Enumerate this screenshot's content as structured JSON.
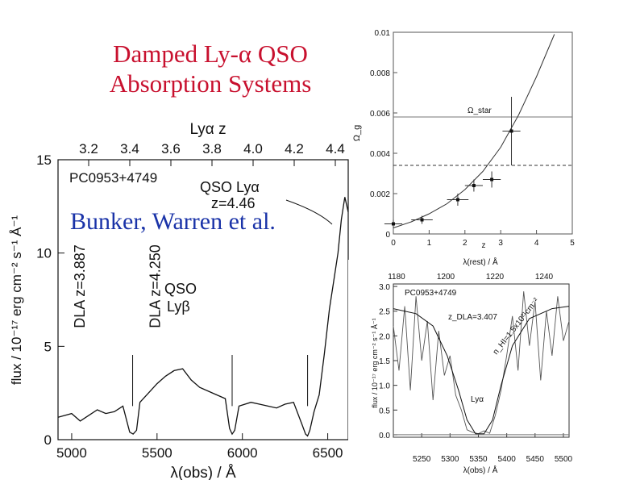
{
  "slide": {
    "title_line1": "Damped Ly-α QSO",
    "title_line2": "Absorption Systems",
    "credit": "Bunker, Warren et al."
  },
  "chart_data": [
    {
      "type": "line",
      "object": "PC0953+4749",
      "xlabel": "λ(obs) / Å",
      "ylabel": "flux / 10⁻¹⁷ erg cm⁻² s⁻¹ Å⁻¹",
      "top_axis_label": "Lyα z",
      "xlim": [
        4920,
        6620
      ],
      "ylim": [
        0,
        15
      ],
      "x_ticks": [
        5000,
        5500,
        6000,
        6500
      ],
      "y_ticks": [
        0,
        5,
        10,
        15
      ],
      "top_ticks": [
        "3.2",
        "3.4",
        "3.6",
        "3.8",
        "4.0",
        "4.2",
        "4.4"
      ],
      "annotations": [
        {
          "text": "QSO Lyα",
          "sub": "z=4.46",
          "x": 6580,
          "y": 9.6
        },
        {
          "text": "QSO",
          "sub": "Lyβ",
          "x": 5600,
          "y": 6
        },
        {
          "text": "DLA z=3.407",
          "x": 5357,
          "y": 1.8,
          "vertical": true
        },
        {
          "text": "DLA z=3.887",
          "x": 5940,
          "y": 1.8,
          "vertical": true
        },
        {
          "text": "DLA z=4.250",
          "x": 6382,
          "y": 1.8,
          "vertical": true
        }
      ],
      "x": [
        4920,
        5000,
        5050,
        5100,
        5150,
        5200,
        5250,
        5300,
        5340,
        5360,
        5380,
        5400,
        5450,
        5500,
        5550,
        5600,
        5650,
        5700,
        5750,
        5800,
        5850,
        5900,
        5925,
        5940,
        5955,
        5980,
        6050,
        6100,
        6150,
        6200,
        6250,
        6300,
        6350,
        6370,
        6382,
        6395,
        6420,
        6450,
        6480,
        6510,
        6540,
        6560,
        6580,
        6600,
        6620
      ],
      "y": [
        1.2,
        1.4,
        1.0,
        1.3,
        1.6,
        1.4,
        1.5,
        1.8,
        0.4,
        0.3,
        0.5,
        2.0,
        2.5,
        3.0,
        3.4,
        3.7,
        3.8,
        3.2,
        2.8,
        2.6,
        2.4,
        2.2,
        0.6,
        0.3,
        0.5,
        1.8,
        2.0,
        1.9,
        1.8,
        1.7,
        1.9,
        2.0,
        0.8,
        0.3,
        0.2,
        0.5,
        1.5,
        2.4,
        4.6,
        7.0,
        8.8,
        10.0,
        11.8,
        13.0,
        12.2
      ]
    },
    {
      "type": "scatter",
      "xlabel": "z",
      "ylabel": "Ω_g",
      "xlim": [
        0,
        5
      ],
      "ylim": [
        0,
        0.01
      ],
      "x_ticks": [
        0,
        1,
        2,
        3,
        4,
        5
      ],
      "y_ticks": [
        0,
        0.002,
        0.004,
        0.006,
        0.008,
        0.01
      ],
      "reference_lines": [
        {
          "label": "Ω_star",
          "y": 0.0058
        }
      ],
      "dashed_line_y": 0.0034,
      "points": [
        {
          "x": 0.0,
          "y": 0.0005,
          "xerr": 0.25,
          "yerr": 0.0002
        },
        {
          "x": 0.8,
          "y": 0.0007,
          "xerr": 0.3,
          "yerr": 0.0002
        },
        {
          "x": 1.8,
          "y": 0.0017,
          "xerr": 0.3,
          "yerr": 0.0003
        },
        {
          "x": 2.25,
          "y": 0.0024,
          "xerr": 0.25,
          "yerr": 0.0003
        },
        {
          "x": 2.75,
          "y": 0.0027,
          "xerr": 0.25,
          "yerr": 0.0004
        },
        {
          "x": 3.3,
          "y": 0.0051,
          "xerr": 0.25,
          "yerr": 0.0017
        }
      ],
      "curve_x": [
        0,
        0.5,
        1,
        1.5,
        2,
        2.5,
        3,
        3.5,
        4,
        4.5
      ],
      "curve_y": [
        0.0003,
        0.0006,
        0.001,
        0.0015,
        0.0022,
        0.0031,
        0.0043,
        0.0059,
        0.0078,
        0.0099
      ]
    },
    {
      "type": "line",
      "object": "PC0953+4749",
      "xlabel": "λ(obs) / Å",
      "ylabel": "flux / 10⁻¹⁷ erg cm⁻² s⁻¹ Å⁻¹",
      "top_axis_label": "λ(rest) / Å",
      "xlim": [
        5200,
        5510
      ],
      "ylim": [
        -0.05,
        3.05
      ],
      "x_ticks": [
        5250,
        5300,
        5350,
        5400,
        5450,
        5500
      ],
      "y_ticks": [
        "0.0",
        "0.5",
        "1.0",
        "1.5",
        "2.0",
        "2.5",
        "3.0"
      ],
      "top_ticks": [
        1180,
        1200,
        1220,
        1240
      ],
      "annotations": [
        {
          "text": "z_DLA=3.407"
        },
        {
          "text": "n_HI=1.5x10²¹cm⁻²"
        },
        {
          "text": "Lyα"
        }
      ],
      "x": [
        5200,
        5210,
        5220,
        5230,
        5240,
        5250,
        5260,
        5270,
        5280,
        5290,
        5300,
        5310,
        5320,
        5330,
        5340,
        5350,
        5360,
        5370,
        5380,
        5390,
        5400,
        5410,
        5420,
        5430,
        5440,
        5450,
        5460,
        5470,
        5480,
        5490,
        5500,
        5510
      ],
      "y": [
        2.2,
        1.3,
        2.6,
        0.9,
        2.8,
        1.5,
        2.3,
        0.7,
        2.1,
        1.2,
        1.6,
        0.8,
        0.5,
        0.1,
        0.05,
        0.02,
        0.08,
        0.03,
        0.4,
        0.9,
        1.6,
        2.4,
        1.3,
        2.9,
        1.8,
        2.7,
        1.1,
        2.5,
        1.6,
        2.8,
        1.9,
        2.3
      ],
      "model_x": [
        5200,
        5240,
        5270,
        5295,
        5315,
        5330,
        5345,
        5360,
        5375,
        5390,
        5410,
        5440,
        5480,
        5510
      ],
      "model_y": [
        2.55,
        2.45,
        2.2,
        1.6,
        0.9,
        0.3,
        0.02,
        0.02,
        0.3,
        1.0,
        1.8,
        2.35,
        2.55,
        2.6
      ]
    }
  ]
}
